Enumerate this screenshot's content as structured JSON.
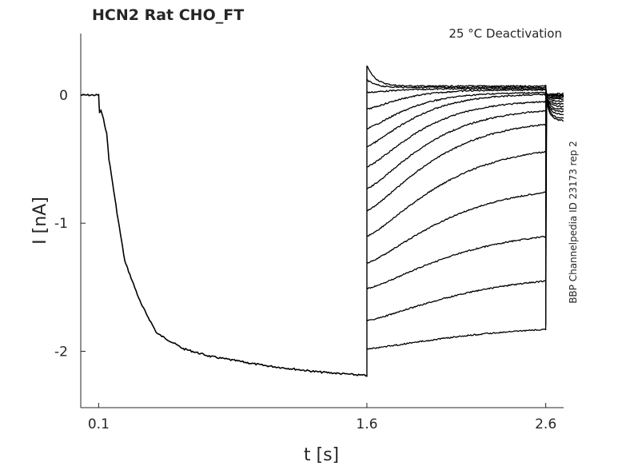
{
  "chart_data": {
    "type": "line",
    "title": "HCN2  Rat  CHO_FT",
    "subtitle": "25 °C  Deactivation",
    "side_label": "BBP Channelpedia ID 23173 rep 2",
    "xlabel": "t [s]",
    "ylabel": "I [nA]",
    "xlim": [
      0,
      2.7
    ],
    "ylim": [
      -2.44,
      0.48
    ],
    "xticks": [
      0.1,
      1.6,
      2.6
    ],
    "xtick_labels": [
      "0.1",
      "1.6",
      "2.6"
    ],
    "yticks": [
      0,
      -1,
      -2
    ],
    "ytick_labels": [
      "0",
      "-1",
      "-2"
    ],
    "grid": false,
    "line_color": "#000000",
    "activation_trace": {
      "t": [
        0,
        0.1,
        0.105,
        0.113,
        0.127,
        0.145,
        0.158,
        0.203,
        0.247,
        0.337,
        0.426,
        0.573,
        0.725,
        1.02,
        1.32,
        1.6
      ],
      "I": [
        0,
        0,
        -0.14,
        -0.12,
        -0.19,
        -0.3,
        -0.5,
        -0.92,
        -1.3,
        -1.63,
        -1.86,
        -1.98,
        -2.04,
        -2.11,
        -2.16,
        -2.19
      ]
    },
    "deactivation_traces": {
      "t_start": 1.6,
      "t_end": 2.6,
      "start_I": [
        0.23,
        0.12,
        0.02,
        -0.11,
        -0.26,
        -0.4,
        -0.56,
        -0.73,
        -0.9,
        -1.1,
        -1.31,
        -1.51,
        -1.76,
        -1.98
      ],
      "end_I": [
        0.07,
        0.06,
        0.05,
        0.04,
        0.02,
        0.01,
        -0.04,
        -0.1,
        -0.19,
        -0.39,
        -0.7,
        -1.05,
        -1.4,
        -1.8
      ],
      "tail_end_I": [
        0.01,
        0.0,
        0.0,
        -0.01,
        -0.02,
        -0.03,
        -0.05,
        -0.07,
        -0.09,
        -0.11,
        -0.13,
        -0.15,
        -0.18,
        -0.2
      ]
    }
  }
}
